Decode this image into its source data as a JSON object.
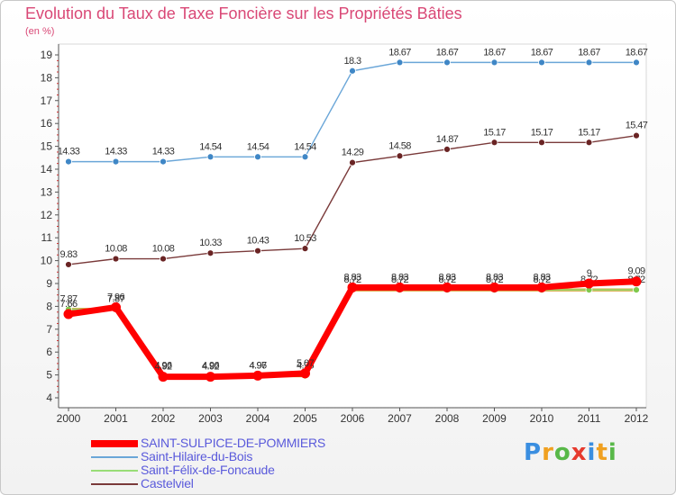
{
  "title": "Evolution du Taux de Taxe Foncière sur les Propriétés Bâties",
  "subtitle": "(en %)",
  "logo": {
    "text": "Proxiti",
    "letters": [
      "P",
      "r",
      "o",
      "x",
      "i",
      "t",
      "i"
    ],
    "colors": [
      "#3a8ee0",
      "#f0a020",
      "#58b848",
      "#e63a2e",
      "#3a8ee0",
      "#f0a020",
      "#58b848"
    ]
  },
  "chart_data": {
    "type": "line",
    "title": "Evolution du Taux de Taxe Foncière sur les Propriétés Bâties",
    "ylabel": "(en %)",
    "xlabel": "",
    "ylim": [
      4,
      19
    ],
    "yticks": [
      "4",
      "5",
      "6",
      "7",
      "8",
      "9",
      "10",
      "11",
      "12",
      "13",
      "14",
      "15",
      "16",
      "17",
      "18",
      "19"
    ],
    "categories": [
      "2000",
      "2001",
      "2002",
      "2003",
      "2004",
      "2005",
      "2006",
      "2007",
      "2008",
      "2009",
      "2010",
      "2011",
      "2012"
    ],
    "series": [
      {
        "name": "Saint-Hilaire-du-Bois",
        "color": "#6aa6d8",
        "marker": "#3f87c6",
        "values": [
          14.33,
          14.33,
          14.33,
          14.54,
          14.54,
          14.54,
          18.3,
          18.67,
          18.67,
          18.67,
          18.67,
          18.67,
          18.67
        ],
        "labels": [
          "14.33",
          "14.33",
          "14.33",
          "14.54",
          "14.54",
          "14.54",
          "18.3",
          "18.67",
          "18.67",
          "18.67",
          "18.67",
          "18.67",
          "18.67"
        ]
      },
      {
        "name": "Castelviel",
        "color": "#7a3a3a",
        "marker": "#6a2424",
        "values": [
          9.83,
          10.08,
          10.08,
          10.33,
          10.43,
          10.53,
          14.29,
          14.58,
          14.87,
          15.17,
          15.17,
          15.17,
          15.47
        ],
        "labels": [
          "9.83",
          "10.08",
          "10.08",
          "10.33",
          "10.43",
          "10.53",
          "14.29",
          "14.58",
          "14.87",
          "15.17",
          "15.17",
          "15.17",
          "15.47"
        ]
      },
      {
        "name": "Saint-Félix-de-Foncaude",
        "color": "#99dd77",
        "marker": "#7fc84c",
        "values": [
          7.87,
          7.87,
          4.96,
          4.96,
          4.96,
          4.96,
          8.72,
          8.72,
          8.72,
          8.72,
          8.72,
          8.72,
          8.72
        ],
        "labels": [
          "7.87",
          "7.87",
          "4.96",
          "4.96",
          "4.96",
          "4.96",
          "8.72",
          "8.72",
          "8.72",
          "8.72",
          "8.72",
          "8.72",
          "8.72"
        ]
      },
      {
        "name": "SAINT-SULPICE-DE-POMMIERS",
        "color": "#ff0000",
        "marker": "#ff0000",
        "values": [
          7.66,
          7.96,
          4.92,
          4.92,
          4.97,
          5.07,
          8.83,
          8.83,
          8.83,
          8.83,
          8.83,
          9,
          9.09
        ],
        "labels": [
          "7.66",
          "7.96",
          "4.92",
          "4.92",
          "4.97",
          "5.07",
          "8.83",
          "8.83",
          "8.83",
          "8.83",
          "8.83",
          "9",
          "9.09"
        ]
      }
    ],
    "legend": [
      {
        "name": "SAINT-SULPICE-DE-POMMIERS",
        "color": "#ff0000",
        "thick": true
      },
      {
        "name": "Saint-Hilaire-du-Bois",
        "color": "#6aa6d8",
        "thick": false
      },
      {
        "name": "Saint-Félix-de-Foncaude",
        "color": "#99dd77",
        "thick": false
      },
      {
        "name": "Castelviel",
        "color": "#7a3a3a",
        "thick": false
      }
    ],
    "legend_position": "bottom-left",
    "grid": false
  }
}
